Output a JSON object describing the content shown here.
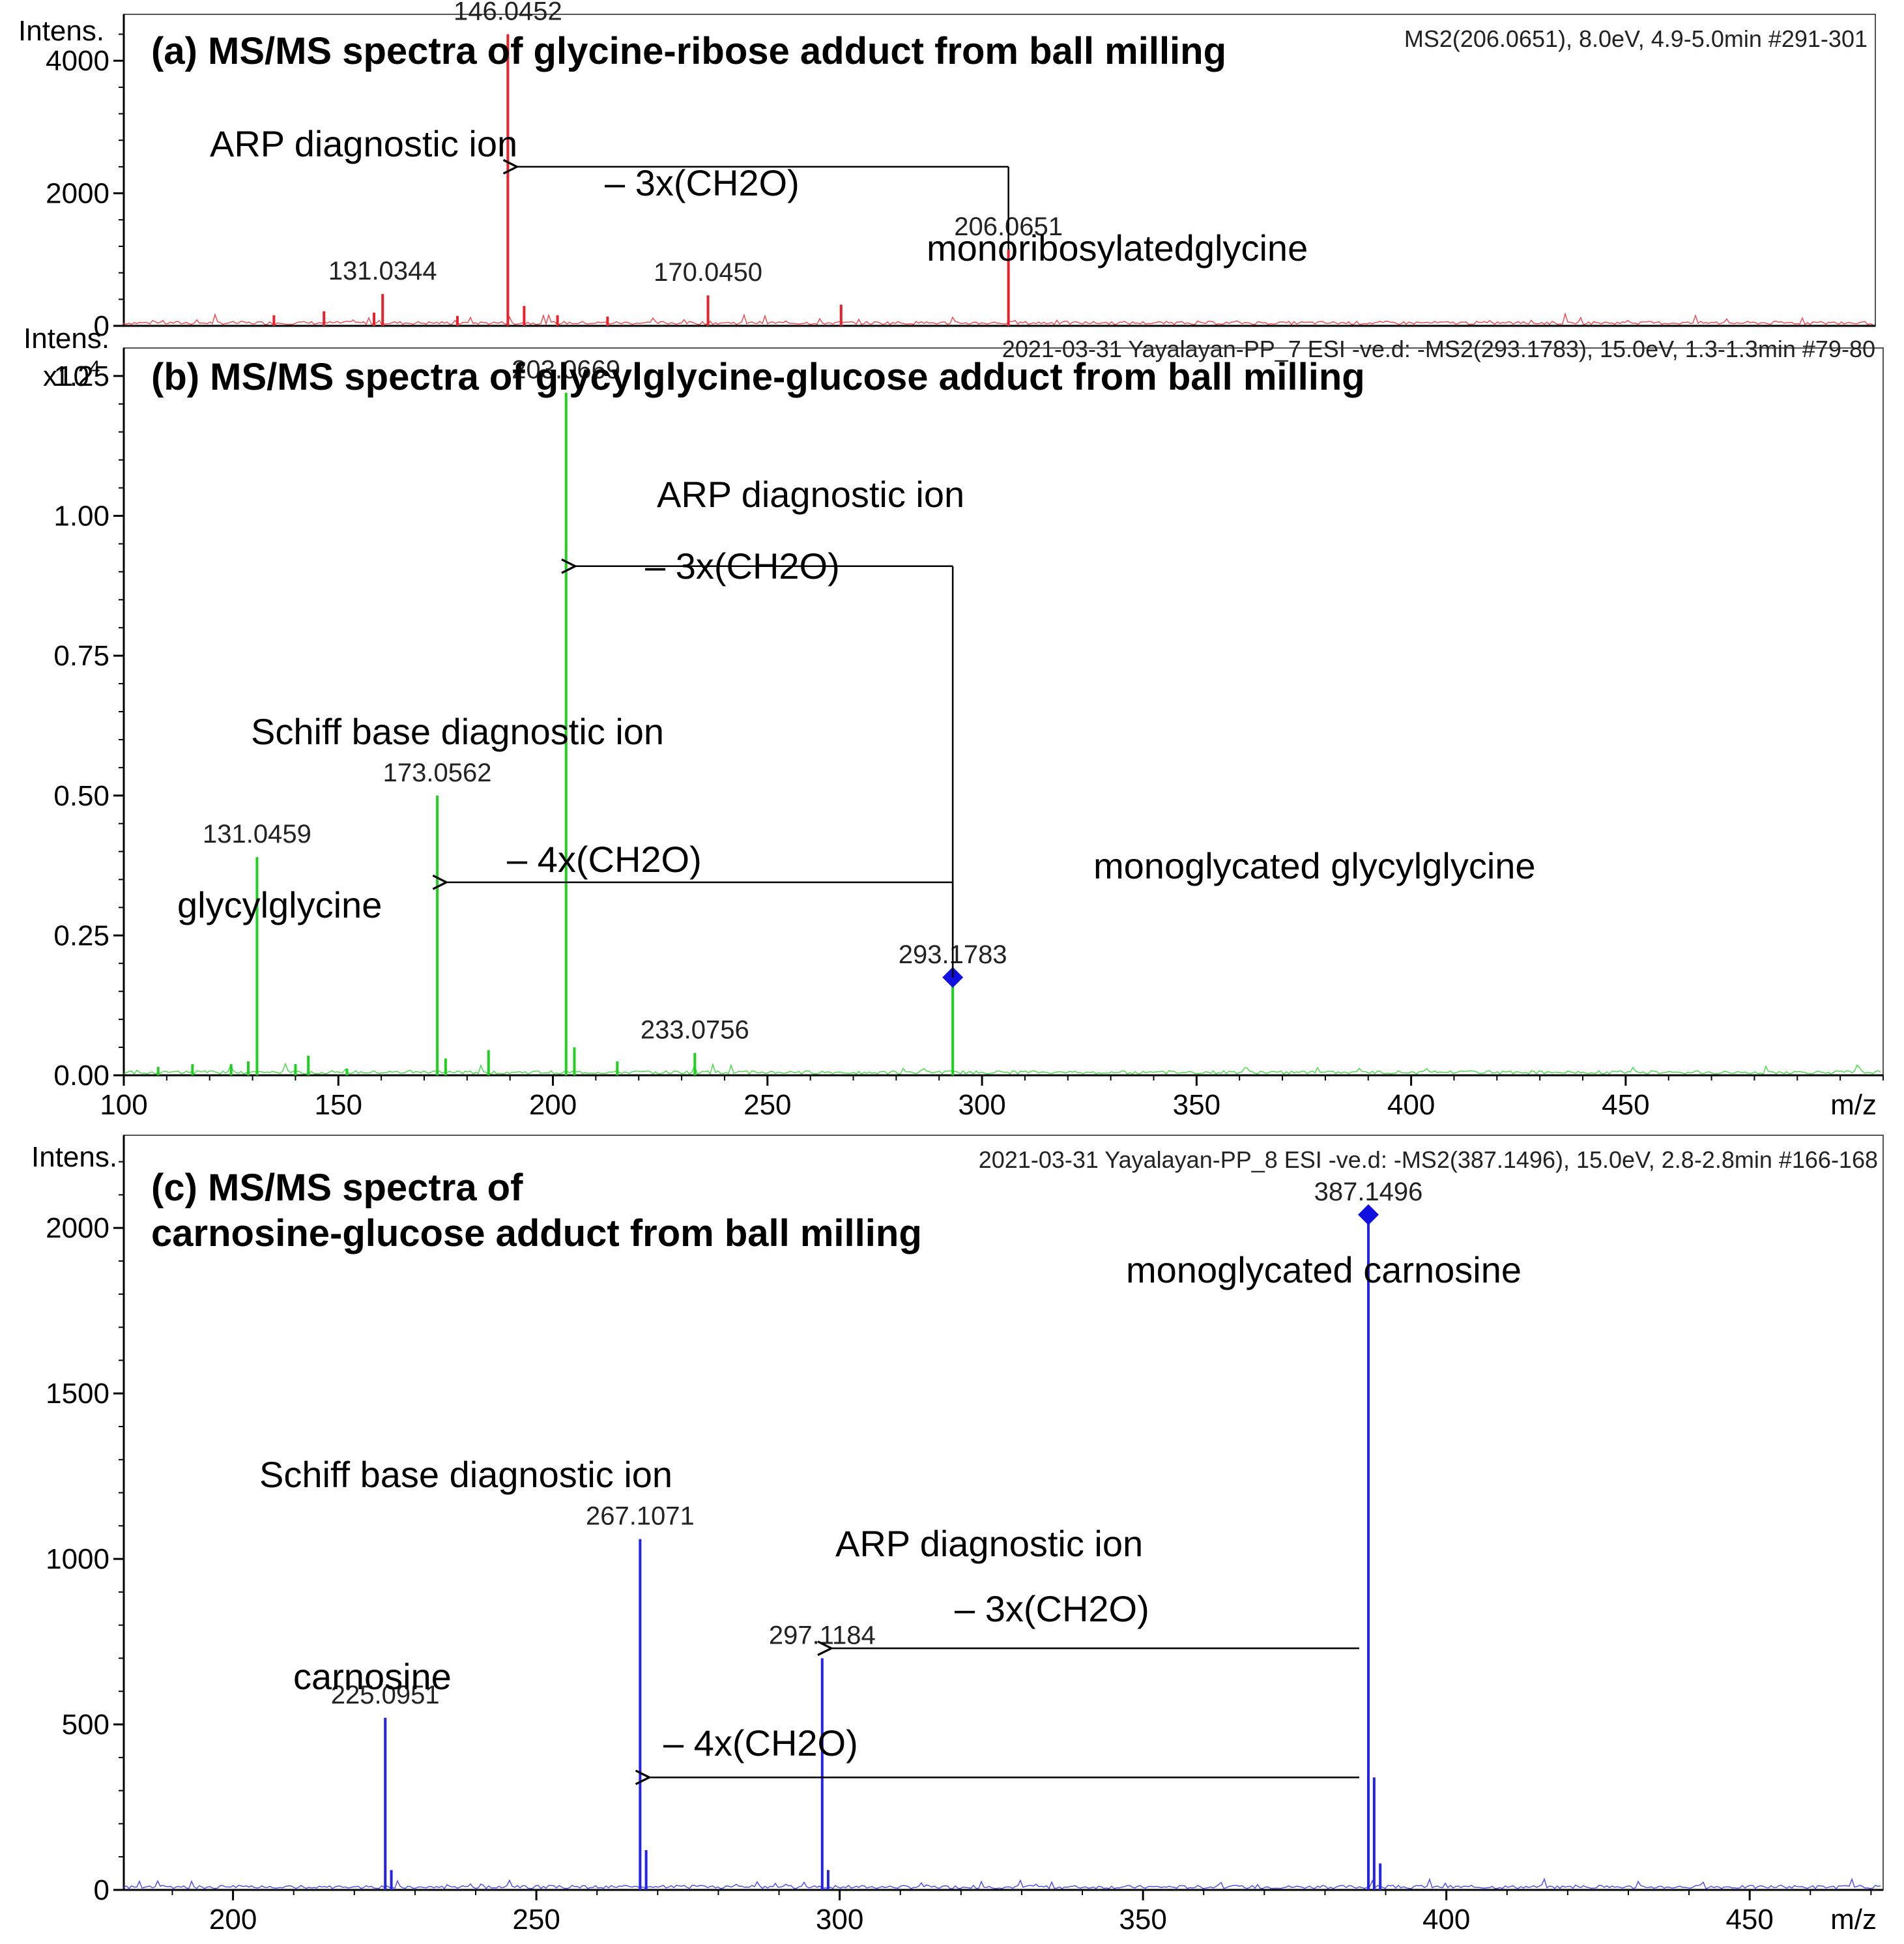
{
  "chart_data": [
    {
      "panel": "a",
      "type": "line",
      "title": "(a) MS/MS spectra of glycine-ribose adduct from ball milling",
      "info": "MS2(206.0651), 8.0eV, 4.9-5.0min #291-301",
      "ylabel": "Intens.",
      "color": "#e8222a",
      "ylim": [
        0,
        4700
      ],
      "yticks": [
        0,
        2000,
        4000
      ],
      "ytick_labels": [
        "0",
        "2000",
        "4000"
      ],
      "xlim": [
        100,
        310
      ],
      "peaks": [
        {
          "mz": 118.0,
          "intensity": 160
        },
        {
          "mz": 124.0,
          "intensity": 220
        },
        {
          "mz": 130.0,
          "intensity": 200
        },
        {
          "mz": 131.0344,
          "intensity": 480,
          "label": "131.0344"
        },
        {
          "mz": 140.0,
          "intensity": 150
        },
        {
          "mz": 146.0452,
          "intensity": 4400,
          "label": "146.0452"
        },
        {
          "mz": 148.0,
          "intensity": 300
        },
        {
          "mz": 152.0,
          "intensity": 160
        },
        {
          "mz": 158.0,
          "intensity": 140
        },
        {
          "mz": 170.045,
          "intensity": 460,
          "label": "170.0450"
        },
        {
          "mz": 186.0,
          "intensity": 320
        },
        {
          "mz": 206.0651,
          "intensity": 1150,
          "label": "206.0651",
          "precursor": true
        }
      ],
      "annotations": [
        {
          "text": "ARP diagnostic ion",
          "mz": 146.0452
        },
        {
          "text": "– 3x(CH2O)",
          "from_mz": 206.0651,
          "to_mz": 146.0452,
          "level": 2400
        },
        {
          "text": "monoribosylatedglycine",
          "mz": 206.0651
        }
      ]
    },
    {
      "panel": "b",
      "type": "line",
      "title": "(b) MS/MS spectra of glycylglycine-glucose  adduct from ball milling",
      "info": "2021-03-31 Yayalayan-PP_7 ESI -ve.d: -MS2(293.1783), 15.0eV, 1.3-1.3min #79-80",
      "ylabel": "Intens.",
      "yscale_label": "x10",
      "yscale_exp": "4",
      "xlabel": "m/z",
      "color": "#1fd11f",
      "xlim": [
        100,
        510
      ],
      "xticks": [
        100,
        150,
        200,
        250,
        300,
        350,
        400,
        450
      ],
      "ylim": [
        0,
        1.3
      ],
      "yticks": [
        0.0,
        0.25,
        0.5,
        0.75,
        1.0,
        1.25
      ],
      "ytick_labels": [
        "0.00",
        "0.25",
        "0.50",
        "0.75",
        "1.00",
        "1.25"
      ],
      "peaks": [
        {
          "mz": 108.0,
          "intensity": 0.015
        },
        {
          "mz": 116.0,
          "intensity": 0.02
        },
        {
          "mz": 125.0,
          "intensity": 0.02
        },
        {
          "mz": 129.0,
          "intensity": 0.025
        },
        {
          "mz": 131.0459,
          "intensity": 0.39,
          "label": "131.0459"
        },
        {
          "mz": 140.0,
          "intensity": 0.02
        },
        {
          "mz": 143.0,
          "intensity": 0.035
        },
        {
          "mz": 152.0,
          "intensity": 0.012
        },
        {
          "mz": 173.0562,
          "intensity": 0.5,
          "label": "173.0562"
        },
        {
          "mz": 175.0,
          "intensity": 0.03
        },
        {
          "mz": 185.0,
          "intensity": 0.045
        },
        {
          "mz": 203.0669,
          "intensity": 1.22,
          "label": "203.0669"
        },
        {
          "mz": 205.0,
          "intensity": 0.05
        },
        {
          "mz": 215.0,
          "intensity": 0.025
        },
        {
          "mz": 233.0756,
          "intensity": 0.04,
          "label": "233.0756"
        },
        {
          "mz": 293.1783,
          "intensity": 0.175,
          "label": "293.1783",
          "precursor": true
        }
      ],
      "annotations": [
        {
          "text": "ARP diagnostic ion",
          "mz": 203.0669
        },
        {
          "text": "– 3x(CH2O)",
          "from_mz": 293.1783,
          "to_mz": 203.0669,
          "level": 0.91
        },
        {
          "text": "Schiff base diagnostic ion",
          "mz": 173.0562
        },
        {
          "text": "– 4x(CH2O)",
          "from_mz": 293.1783,
          "to_mz": 173.0562,
          "level": 0.345
        },
        {
          "text": "glycylglycine",
          "mz": 131.0459
        },
        {
          "text": "monoglycated glycylglycine",
          "mz": 293.1783
        }
      ]
    },
    {
      "panel": "c",
      "type": "line",
      "title": "(c) MS/MS spectra of",
      "title_line2": "carnosine-glucose adduct from ball milling",
      "info": "2021-03-31 Yayalayan-PP_8 ESI -ve.d: -MS2(387.1496), 15.0eV, 2.8-2.8min #166-168",
      "ylabel": "Intens.",
      "xlabel": "m/z",
      "color": "#2424e8",
      "xlim": [
        182,
        472
      ],
      "xticks": [
        200,
        250,
        300,
        350,
        400,
        450
      ],
      "ylim": [
        0,
        2280
      ],
      "yticks": [
        0,
        500,
        1000,
        1500,
        2000
      ],
      "ytick_labels": [
        "0",
        "500",
        "1000",
        "1500",
        "2000"
      ],
      "peaks": [
        {
          "mz": 225.0951,
          "intensity": 520,
          "label": "225.0951"
        },
        {
          "mz": 226.1,
          "intensity": 60
        },
        {
          "mz": 267.1071,
          "intensity": 1060,
          "label": "267.1071"
        },
        {
          "mz": 268.1,
          "intensity": 120
        },
        {
          "mz": 297.1184,
          "intensity": 700,
          "label": "297.1184"
        },
        {
          "mz": 298.1,
          "intensity": 60
        },
        {
          "mz": 387.1496,
          "intensity": 2040,
          "label": "387.1496",
          "precursor": true
        },
        {
          "mz": 388.1,
          "intensity": 340
        },
        {
          "mz": 389.1,
          "intensity": 80
        }
      ],
      "annotations": [
        {
          "text": "monoglycated carnosine",
          "mz": 387.1496
        },
        {
          "text": "Schiff base diagnostic ion",
          "mz": 267.1071
        },
        {
          "text": "ARP diagnostic ion",
          "mz": 297.1184
        },
        {
          "text": "– 3x(CH2O)",
          "from_mz": 387.1496,
          "to_mz": 297.1184,
          "level": 730
        },
        {
          "text": "– 4x(CH2O)",
          "from_mz": 387.1496,
          "to_mz": 267.1071,
          "level": 340
        },
        {
          "text": "carnosine",
          "mz": 225.0951
        }
      ]
    }
  ]
}
